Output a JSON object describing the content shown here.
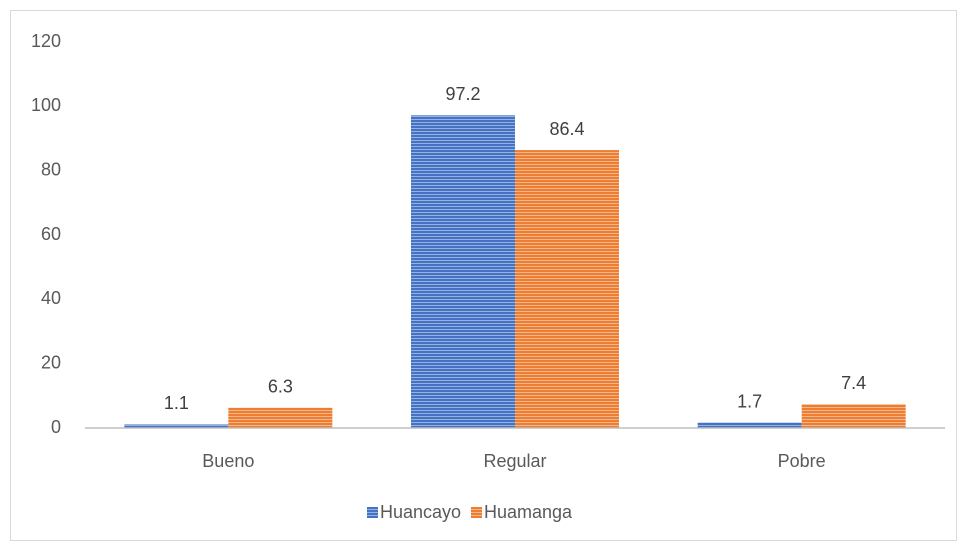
{
  "chart_data": {
    "type": "bar",
    "categories": [
      "Bueno",
      "Regular",
      "Pobre"
    ],
    "series": [
      {
        "name": "Huancayo",
        "color": "#4472c4",
        "values": [
          1.1,
          97.2,
          1.7
        ]
      },
      {
        "name": "Huamanga",
        "color": "#ed7d31",
        "values": [
          6.3,
          86.4,
          7.4
        ]
      }
    ],
    "ylim": [
      0,
      120
    ],
    "yticks": [
      0,
      20,
      40,
      60,
      80,
      100,
      120
    ],
    "grid": false,
    "legend": "bottom"
  }
}
